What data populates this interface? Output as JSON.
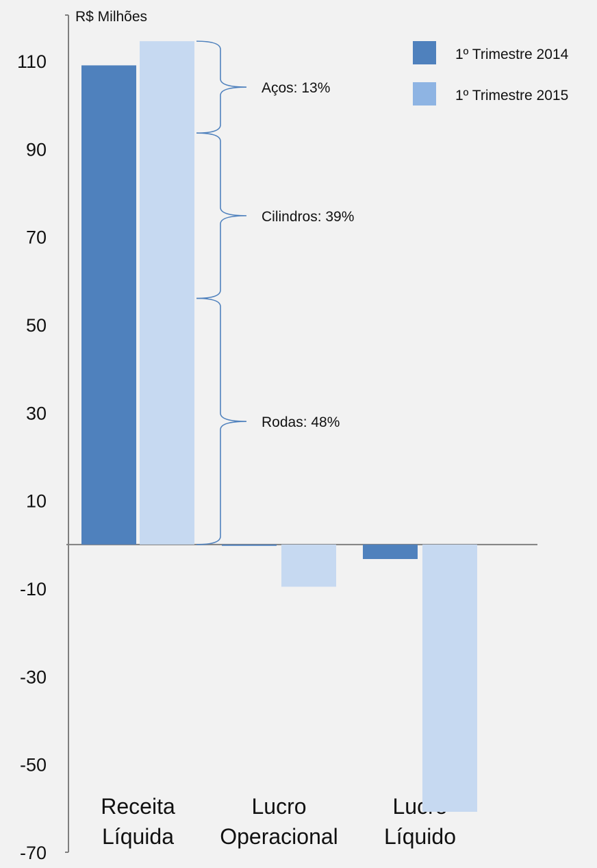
{
  "chart_data": {
    "type": "bar",
    "unit_label": "R$ Milhões",
    "categories": [
      [
        "Receita",
        "Líquida"
      ],
      [
        "Lucro",
        "Operacional"
      ],
      [
        "Lucro",
        "Líquido"
      ]
    ],
    "series": [
      {
        "name": "1º Trimestre 2014",
        "color": "#4f81bd",
        "values": [
          109.0,
          -0.3,
          -3.3
        ]
      },
      {
        "name": "1º Trimestre 2015",
        "color": "#c6d9f1",
        "values": [
          114.5,
          -9.6,
          -60.8
        ]
      }
    ],
    "legend_swatch_colors": [
      "#4f81bd",
      "#8eb4e3"
    ],
    "ylim": [
      -70,
      120
    ],
    "yticks": [
      110,
      90,
      70,
      50,
      30,
      10,
      -10,
      -30,
      -50,
      -70
    ],
    "grid": false,
    "legend_position": "top-right",
    "annotations": [
      {
        "label": "Aços: 13%",
        "from": 93.6,
        "to": 114.5
      },
      {
        "label": "Cilindros: 39%",
        "from": 56.0,
        "to": 93.6
      },
      {
        "label": "Rodas: 48%",
        "from": 0,
        "to": 56.0
      }
    ]
  }
}
